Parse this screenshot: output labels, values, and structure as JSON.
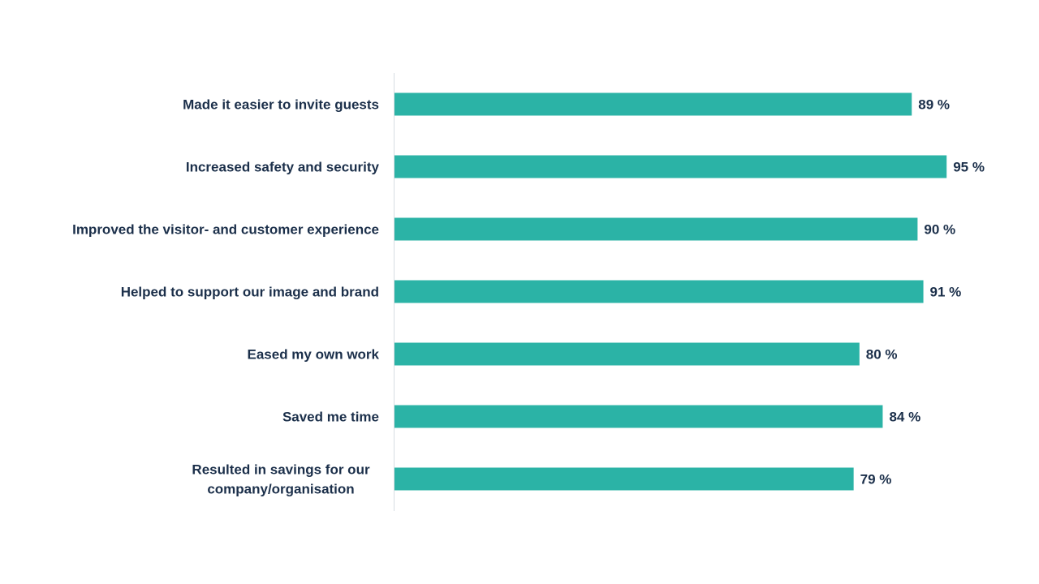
{
  "chart_data": {
    "type": "bar",
    "orientation": "horizontal",
    "categories": [
      [
        "Made it easier to invite guests"
      ],
      [
        "Increased safety and security"
      ],
      [
        "Improved the visitor- and customer experience"
      ],
      [
        "Helped to support our image and brand"
      ],
      [
        "Eased my own work"
      ],
      [
        "Saved me time"
      ],
      [
        "Resulted in savings for our",
        "company/organisation"
      ]
    ],
    "values": [
      89,
      95,
      90,
      91,
      80,
      84,
      79
    ],
    "value_labels": [
      "89 %",
      "95 %",
      "90 %",
      "91 %",
      "80 %",
      "84 %",
      "79 %"
    ],
    "xlim": [
      0,
      100
    ],
    "grid": false,
    "legend": "none"
  },
  "colors": {
    "bar": "#2bb3a6",
    "text": "#1b2f4a",
    "axis": "#d6dde3"
  }
}
